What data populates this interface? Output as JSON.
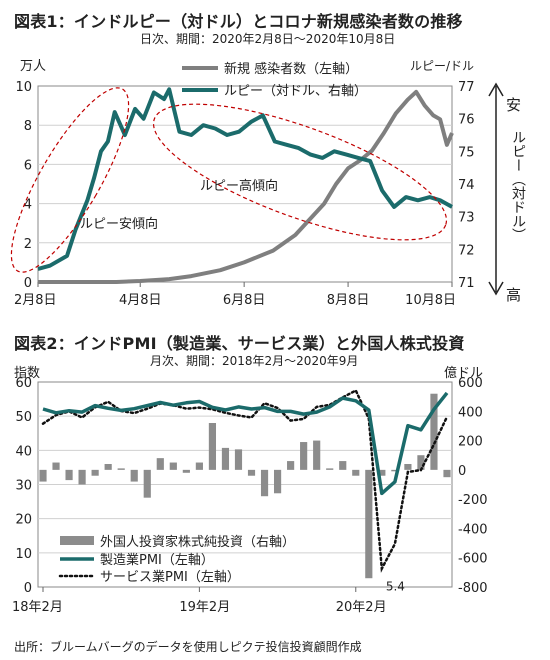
{
  "chart1": {
    "title": "図表1：インドルピー（対ドル）とコロナ新規感染者数の推移",
    "subtitle": "日次、期間：2020年2月8日〜2020年10月8日",
    "left_unit": "万人",
    "right_unit": "ルピー/ドル",
    "right_axis_label": "ルピー（対ドル）",
    "arrow_top": "安",
    "arrow_bottom": "高",
    "legend": [
      "新規 感染者数（左軸）",
      "ルピー（対ドル、右軸）"
    ],
    "annotations": [
      "ルピー安傾向",
      "ルピー高傾向"
    ],
    "colors": {
      "cases": "#7f7f7f",
      "rupee": "#1b6b6b",
      "ellipse": "#c00000"
    }
  },
  "chart2": {
    "title": "図表2：インドPMI（製造業、サービス業）と外国人株式投資",
    "subtitle": "月次、期間：2018年2月〜2020年9月",
    "left_unit": "指数",
    "right_unit": "億ドル",
    "legend": [
      "外国人投資家株式純投資（右軸）",
      "製造業PMI（左軸）",
      "サービス業PMI（左軸）"
    ],
    "annotation": "5.4",
    "colors": {
      "bars": "#8c8c8c",
      "mfg": "#1b6b6b",
      "svc": "#111111"
    }
  },
  "footer": "出所：ブルームバーグのデータを使用しピクテ投信投資顧問作成",
  "chart_data": [
    {
      "type": "line",
      "x_ticks": [
        "2月8日",
        "4月8日",
        "6月8日",
        "8月8日",
        "10月8日"
      ],
      "ylim_left": [
        0,
        10
      ],
      "ylim_right": [
        71,
        77
      ],
      "left_ticks": [
        0,
        2,
        4,
        6,
        8,
        10
      ],
      "right_ticks": [
        71,
        72,
        73,
        74,
        75,
        76,
        77
      ],
      "series": [
        {
          "name": "新規 感染者数（左軸）",
          "axis": "left",
          "x": [
            "2020-02-08",
            "2020-03-08",
            "2020-03-25",
            "2020-04-08",
            "2020-04-25",
            "2020-05-08",
            "2020-05-25",
            "2020-06-08",
            "2020-06-25",
            "2020-07-08",
            "2020-07-25",
            "2020-08-01",
            "2020-08-08",
            "2020-08-15",
            "2020-08-22",
            "2020-08-29",
            "2020-09-05",
            "2020-09-12",
            "2020-09-17",
            "2020-09-22",
            "2020-09-27",
            "2020-10-01",
            "2020-10-05",
            "2020-10-08"
          ],
          "values": [
            0,
            0,
            0,
            0.05,
            0.15,
            0.3,
            0.6,
            1.0,
            1.6,
            2.4,
            4.0,
            5.0,
            5.8,
            6.2,
            6.7,
            7.6,
            8.6,
            9.3,
            9.7,
            9.0,
            8.5,
            8.3,
            7.0,
            7.6
          ]
        },
        {
          "name": "ルピー（対ドル、右軸）",
          "axis": "right",
          "x": [
            "2020-02-08",
            "2020-02-15",
            "2020-02-25",
            "2020-03-01",
            "2020-03-08",
            "2020-03-12",
            "2020-03-16",
            "2020-03-20",
            "2020-03-24",
            "2020-03-30",
            "2020-04-05",
            "2020-04-10",
            "2020-04-16",
            "2020-04-22",
            "2020-04-25",
            "2020-05-01",
            "2020-05-08",
            "2020-05-15",
            "2020-05-22",
            "2020-05-29",
            "2020-06-05",
            "2020-06-12",
            "2020-06-19",
            "2020-06-26",
            "2020-07-03",
            "2020-07-10",
            "2020-07-17",
            "2020-07-24",
            "2020-07-31",
            "2020-08-07",
            "2020-08-14",
            "2020-08-21",
            "2020-08-28",
            "2020-09-04",
            "2020-09-11",
            "2020-09-18",
            "2020-09-25",
            "2020-10-01",
            "2020-10-08"
          ],
          "values": [
            71.4,
            71.5,
            71.8,
            72.6,
            73.5,
            74.2,
            75.0,
            75.3,
            76.2,
            75.5,
            76.3,
            76.0,
            76.8,
            76.6,
            76.9,
            75.6,
            75.5,
            75.8,
            75.7,
            75.5,
            75.6,
            75.9,
            76.1,
            75.3,
            75.2,
            75.1,
            74.9,
            74.8,
            75.0,
            74.9,
            74.8,
            74.7,
            73.8,
            73.3,
            73.6,
            73.5,
            73.6,
            73.5,
            73.3
          ]
        }
      ]
    },
    {
      "type": "bar",
      "x_ticks": [
        "18年2月",
        "19年2月",
        "20年2月"
      ],
      "ylim_left": [
        0,
        60
      ],
      "ylim_right": [
        -800,
        600
      ],
      "left_ticks": [
        0,
        10,
        20,
        30,
        40,
        50,
        60
      ],
      "right_ticks": [
        -800,
        -600,
        -400,
        -200,
        0,
        200,
        400,
        600
      ],
      "categories": [
        "18-02",
        "18-03",
        "18-04",
        "18-05",
        "18-06",
        "18-07",
        "18-08",
        "18-09",
        "18-10",
        "18-11",
        "18-12",
        "19-01",
        "19-02",
        "19-03",
        "19-04",
        "19-05",
        "19-06",
        "19-07",
        "19-08",
        "19-09",
        "19-10",
        "19-11",
        "19-12",
        "20-01",
        "20-02",
        "20-03",
        "20-04",
        "20-05",
        "20-06",
        "20-07",
        "20-08",
        "20-09"
      ],
      "series": [
        {
          "name": "外国人投資家株式純投資（右軸）",
          "axis": "right",
          "kind": "bar",
          "values": [
            -80,
            50,
            -70,
            -100,
            -40,
            40,
            10,
            -80,
            -190,
            80,
            50,
            -20,
            50,
            320,
            150,
            140,
            -40,
            -180,
            -160,
            60,
            190,
            200,
            10,
            60,
            -40,
            -740,
            -40,
            -10,
            40,
            100,
            520,
            -50
          ]
        },
        {
          "name": "製造業PMI（左軸）",
          "axis": "left",
          "kind": "line",
          "values": [
            52.1,
            51.0,
            51.6,
            51.2,
            53.1,
            52.3,
            51.7,
            52.2,
            53.1,
            54.0,
            53.2,
            53.9,
            54.3,
            52.6,
            51.8,
            52.7,
            52.1,
            52.5,
            51.4,
            51.4,
            50.6,
            51.2,
            52.7,
            55.3,
            54.5,
            51.8,
            27.4,
            30.8,
            47.2,
            46.0,
            52.0,
            56.8
          ]
        },
        {
          "name": "サービス業PMI（左軸）",
          "axis": "left",
          "kind": "line",
          "values": [
            47.8,
            50.3,
            51.4,
            49.6,
            52.6,
            54.2,
            51.5,
            50.9,
            52.2,
            53.7,
            53.2,
            52.2,
            52.5,
            52.0,
            51.0,
            50.2,
            49.6,
            53.8,
            52.4,
            48.7,
            49.2,
            52.7,
            53.3,
            55.5,
            57.5,
            49.3,
            5.4,
            12.6,
            33.7,
            34.2,
            41.8,
            49.8
          ]
        }
      ]
    }
  ]
}
